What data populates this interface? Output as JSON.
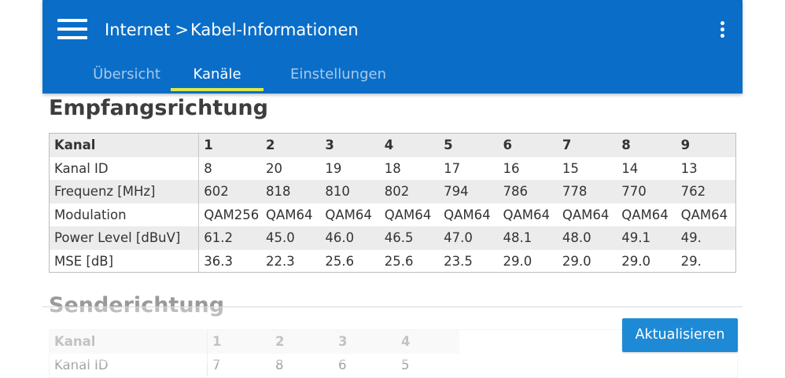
{
  "appbar": {
    "breadcrumb_parent": "Internet",
    "breadcrumb_sep": ">",
    "breadcrumb_current": "Kabel-Informationen",
    "menu_icon": "hamburger-menu-icon",
    "overflow_icon": "vertical-ellipsis-icon",
    "color": "#0a6ec8"
  },
  "tabs": [
    {
      "label": "Übersicht",
      "active": false
    },
    {
      "label": "Kanäle",
      "active": true
    },
    {
      "label": "Einstellungen",
      "active": false
    }
  ],
  "downstream": {
    "title": "Empfangsrichtung",
    "rows": [
      {
        "label": "Kanal",
        "values": [
          "1",
          "2",
          "3",
          "4",
          "5",
          "6",
          "7",
          "8",
          "9"
        ]
      },
      {
        "label": "Kanal ID",
        "values": [
          "8",
          "20",
          "19",
          "18",
          "17",
          "16",
          "15",
          "14",
          "13"
        ]
      },
      {
        "label": "Frequenz [MHz]",
        "values": [
          "602",
          "818",
          "810",
          "802",
          "794",
          "786",
          "778",
          "770",
          "762"
        ]
      },
      {
        "label": "Modulation",
        "values": [
          "QAM256",
          "QAM64",
          "QAM64",
          "QAM64",
          "QAM64",
          "QAM64",
          "QAM64",
          "QAM64",
          "QAM64"
        ]
      },
      {
        "label": "Power Level [dBuV]",
        "values": [
          "61.2",
          "45.0",
          "46.0",
          "46.5",
          "47.0",
          "48.1",
          "48.0",
          "49.1",
          "49."
        ]
      },
      {
        "label": "MSE [dB]",
        "values": [
          "36.3",
          "22.3",
          "25.6",
          "25.6",
          "23.5",
          "29.0",
          "29.0",
          "29.0",
          "29."
        ]
      }
    ]
  },
  "upstream": {
    "title": "Senderichtung",
    "rows": [
      {
        "label": "Kanal",
        "values": [
          "1",
          "2",
          "3",
          "4"
        ]
      },
      {
        "label": "Kanal ID",
        "values": [
          "7",
          "8",
          "6",
          "5"
        ]
      }
    ]
  },
  "refresh_button": {
    "label": "Aktualisieren",
    "color": "#1e8ad6"
  }
}
